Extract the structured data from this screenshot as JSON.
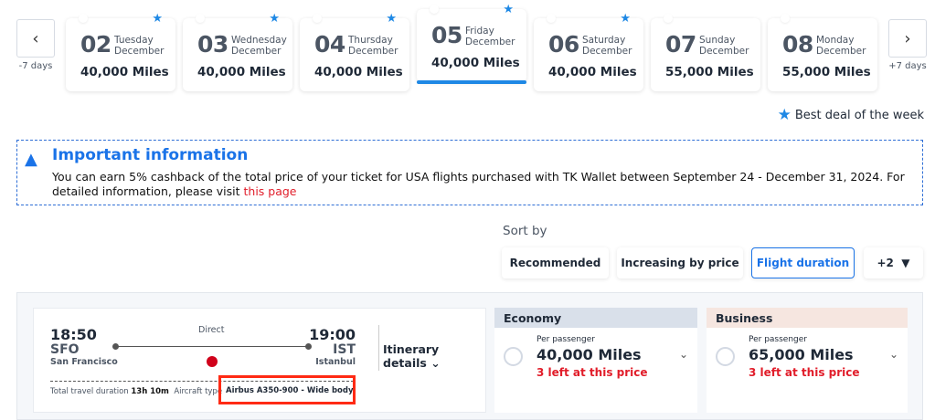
{
  "nav": {
    "prev_label": "-7 days",
    "next_label": "+7 days"
  },
  "days": [
    {
      "num": "02",
      "weekday": "Tuesday",
      "month": "December",
      "miles": "40,000 Miles",
      "best": true
    },
    {
      "num": "03",
      "weekday": "Wednesday",
      "month": "December",
      "miles": "40,000 Miles",
      "best": true
    },
    {
      "num": "04",
      "weekday": "Thursday",
      "month": "December",
      "miles": "40,000 Miles",
      "best": true
    },
    {
      "num": "05",
      "weekday": "Friday",
      "month": "December",
      "miles": "40,000 Miles",
      "best": true,
      "selected": true
    },
    {
      "num": "06",
      "weekday": "Saturday",
      "month": "December",
      "miles": "40,000 Miles",
      "best": true
    },
    {
      "num": "07",
      "weekday": "Sunday",
      "month": "December",
      "miles": "55,000 Miles",
      "best": false
    },
    {
      "num": "08",
      "weekday": "Monday",
      "month": "December",
      "miles": "55,000 Miles",
      "best": false
    }
  ],
  "legend": "Best deal of the week",
  "info": {
    "title": "Important information",
    "text": "You can earn 5% cashback of the total price of your ticket for USA flights purchased with TK Wallet between September 24 - December 31, 2024. For detailed information, please visit ",
    "link": "this page"
  },
  "sort": {
    "label": "Sort by",
    "options": [
      "Recommended",
      "Increasing by price",
      "Flight duration",
      "+2"
    ],
    "active": "Flight duration"
  },
  "flight": {
    "dep_time": "18:50",
    "dep_code": "SFO",
    "dep_city": "San Francisco",
    "arr_time": "19:00",
    "arr_code": "IST",
    "arr_city": "Istanbul",
    "stops": "Direct",
    "itinerary": "Itinerary details",
    "duration_label": "Total travel duration",
    "duration": "13h 10m",
    "aircraft_label": "Aircraft type",
    "aircraft": "Airbus A350-900 - Wide body"
  },
  "fares": [
    {
      "cabin": "Economy",
      "per": "Per passenger",
      "amount": "40,000 Miles",
      "avail": "3 left at this price",
      "color": "#d9e0ea"
    },
    {
      "cabin": "Business",
      "per": "Per passenger",
      "amount": "65,000 Miles",
      "avail": "3 left at this price",
      "color": "#f6e6e0"
    }
  ],
  "colors": {
    "accent": "#1a73e8",
    "alert": "#e11d2a",
    "highlight_box": "#ff2a14"
  }
}
